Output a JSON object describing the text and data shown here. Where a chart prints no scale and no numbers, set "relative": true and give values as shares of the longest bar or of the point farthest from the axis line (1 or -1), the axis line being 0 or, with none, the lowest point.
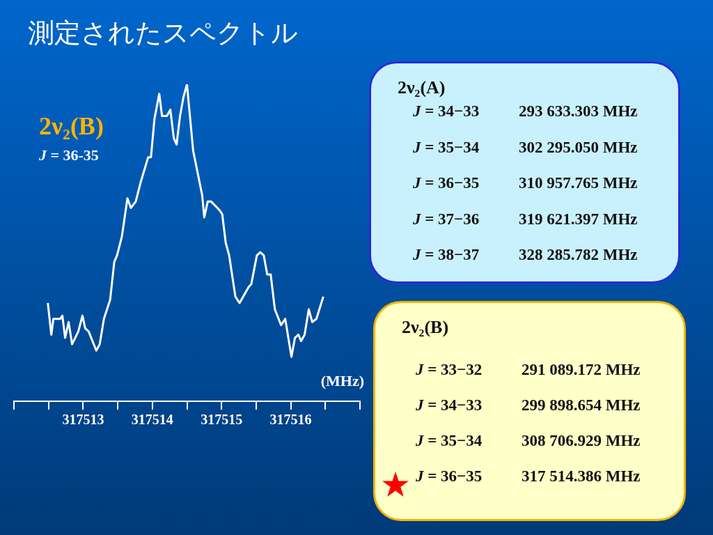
{
  "chart_data": [
    {
      "type": "line",
      "title": "測定されたスペクトル",
      "xlabel": "(MHz)",
      "relative": true,
      "marker": "none",
      "grid": false,
      "legend": false,
      "annotations": [
        "2ν₂(B)",
        "J = 36-35"
      ],
      "xlim": [
        317512,
        317517
      ],
      "xticks": [
        {
          "value": 317512,
          "label": null
        },
        {
          "value": 317512.5,
          "label": null
        },
        317513,
        {
          "value": 317513.5,
          "label": null
        },
        317514,
        {
          "value": 317514.5,
          "label": null
        },
        317515,
        {
          "value": 317515.5,
          "label": null
        },
        317516,
        {
          "value": 317516.5,
          "label": null
        },
        {
          "value": 317517,
          "label": null
        }
      ],
      "series": [
        {
          "color": "#ffffff",
          "x": [
            317512.49,
            317512.54,
            317512.57,
            317512.67,
            317512.7,
            317512.74,
            317512.79,
            317512.84,
            317512.93,
            317512.99,
            317513.03,
            317513.08,
            317513.19,
            317513.24,
            317513.3,
            317513.39,
            317513.45,
            317513.49,
            317513.56,
            317513.64,
            317513.69,
            317513.76,
            317513.83,
            317513.94,
            317513.98,
            317514.03,
            317514.1,
            317514.14,
            317514.21,
            317514.26,
            317514.31,
            317514.35,
            317514.4,
            317514.45,
            317514.5,
            317514.59,
            317514.72,
            317514.75,
            317514.8,
            317514.85,
            317514.94,
            317514.98,
            317515.01,
            317515.06,
            317515.11,
            317515.2,
            317515.26,
            317515.39,
            317515.43,
            317515.51,
            317515.56,
            317515.61,
            317515.66,
            317515.71,
            317515.77,
            317515.86,
            317515.92,
            317516.01,
            317516.06,
            317516.11,
            317516.15,
            317516.2,
            317516.26,
            317516.31,
            317516.37,
            317516.47
          ],
          "values": [
            0.31,
            0.21,
            0.26,
            0.26,
            0.27,
            0.2,
            0.25,
            0.18,
            0.22,
            0.27,
            0.23,
            0.22,
            0.16,
            0.18,
            0.26,
            0.32,
            0.44,
            0.46,
            0.52,
            0.64,
            0.61,
            0.63,
            0.69,
            0.77,
            0.77,
            0.89,
            0.97,
            0.9,
            0.9,
            0.92,
            0.83,
            0.81,
            0.9,
            0.96,
            1,
            0.79,
            0.65,
            0.58,
            0.63,
            0.63,
            0.61,
            0.6,
            0.59,
            0.5,
            0.46,
            0.33,
            0.31,
            0.36,
            0.37,
            0.46,
            0.47,
            0.46,
            0.4,
            0.4,
            0.29,
            0.24,
            0.26,
            0.14,
            0.2,
            0.21,
            0.19,
            0.21,
            0.29,
            0.25,
            0.26,
            0.33
          ]
        }
      ]
    },
    {
      "type": "other",
      "title": "2ν₂(A)",
      "annotations": [
        "J = 34−33",
        "293 633.303 MHz",
        "J = 35−34",
        "302 295.050 MHz",
        "J = 36−35",
        "310 957.765 MHz",
        "J = 37−36",
        "319 621.397 MHz",
        "J = 38−37",
        "328 285.782 MHz"
      ]
    },
    {
      "type": "other",
      "title": "2ν₂(B)",
      "annotations": [
        "J = 33−32",
        "291 089.172 MHz",
        "J = 34−33",
        "299 898.654 MHz",
        "J = 35−34",
        "308 706.929 MHz",
        "J = 36−35",
        "317 514.386 MHz"
      ]
    }
  ]
}
